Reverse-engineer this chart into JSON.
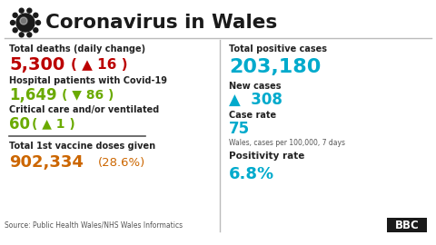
{
  "title": "Coronavirus in Wales",
  "bg_color": "#ffffff",
  "title_color": "#1a1a1a",
  "left_col": {
    "deaths_label": "Total deaths (daily change)",
    "deaths_value": "5,300",
    "deaths_change_arrow": "▲",
    "deaths_change": "16",
    "deaths_value_color": "#bb0000",
    "deaths_change_color": "#bb0000",
    "hosp_label": "Hospital patients with Covid-19",
    "hosp_value": "1,649",
    "hosp_change_arrow": "▼",
    "hosp_change": "86",
    "hosp_value_color": "#6aaa00",
    "hosp_change_color": "#6aaa00",
    "critical_label": "Critical care and/or ventilated",
    "critical_value": "60",
    "critical_change_arrow": "▲",
    "critical_change": "1",
    "critical_value_color": "#6aaa00",
    "critical_change_color": "#6aaa00",
    "vaccine_label": "Total 1st vaccine doses given",
    "vaccine_value": "902,334",
    "vaccine_pct": "(28.6%)",
    "vaccine_value_color": "#cc6600",
    "vaccine_pct_color": "#cc6600",
    "source": "Source: Public Health Wales/NHS Wales Informatics"
  },
  "right_col": {
    "total_label": "Total positive cases",
    "total_value": "203,180",
    "total_value_color": "#00aacc",
    "new_cases_label": "New cases",
    "new_cases_arrow": "▲",
    "new_cases_value": "308",
    "new_cases_color": "#00aacc",
    "case_rate_label": "Case rate",
    "case_rate_value": "75",
    "case_rate_color": "#00aacc",
    "case_rate_note": "Wales, cases per 100,000, 7 days",
    "positivity_label": "Positivity rate",
    "positivity_value": "6.8%",
    "positivity_color": "#00aacc"
  },
  "header_line_color": "#bbbbbb",
  "bbc_color": "#1a1a1a"
}
